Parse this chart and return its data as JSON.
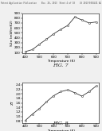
{
  "fig7": {
    "x": [
      400,
      450,
      500,
      550,
      600,
      650,
      700,
      750,
      800,
      850,
      900
    ],
    "y": [
      120,
      160,
      270,
      370,
      480,
      570,
      650,
      820,
      760,
      700,
      720
    ],
    "xlabel": "Temperature (K)",
    "ylabel": "S2σ (mW/mK2)",
    "xlim": [
      380,
      920
    ],
    "ylim": [
      80,
      900
    ],
    "yticks": [
      100,
      200,
      300,
      400,
      500,
      600,
      700,
      800,
      900
    ],
    "xticks": [
      400,
      500,
      600,
      700,
      800,
      900
    ],
    "label": "FIG. 7"
  },
  "fig8": {
    "x": [
      400,
      450,
      500,
      550,
      600,
      650,
      700,
      750,
      800,
      850,
      900
    ],
    "y": [
      0.82,
      1.1,
      1.35,
      1.65,
      1.92,
      2.1,
      2.18,
      2.05,
      1.9,
      2.1,
      2.35
    ],
    "xlabel": "Temperature (K)",
    "ylabel": "ZT",
    "xlim": [
      380,
      920
    ],
    "ylim": [
      0.7,
      2.5
    ],
    "yticks": [
      0.8,
      1.0,
      1.2,
      1.4,
      1.6,
      1.8,
      2.0,
      2.2,
      2.4
    ],
    "xticks": [
      400,
      500,
      600,
      700,
      800,
      900
    ],
    "label": "FIG. 8"
  },
  "header_text": "Patent Application Publication    Nov. 26, 2013  Sheet 4 of 10    US 2013/0316441 A1",
  "line_color": "#333333",
  "marker": "o",
  "marker_size": 1.5,
  "line_width": 0.6,
  "bg_color": "#f0f0f0",
  "plot_bg": "#ffffff",
  "tick_fontsize": 3.0,
  "label_fontsize": 3.2,
  "fig_label_fontsize": 4.5
}
